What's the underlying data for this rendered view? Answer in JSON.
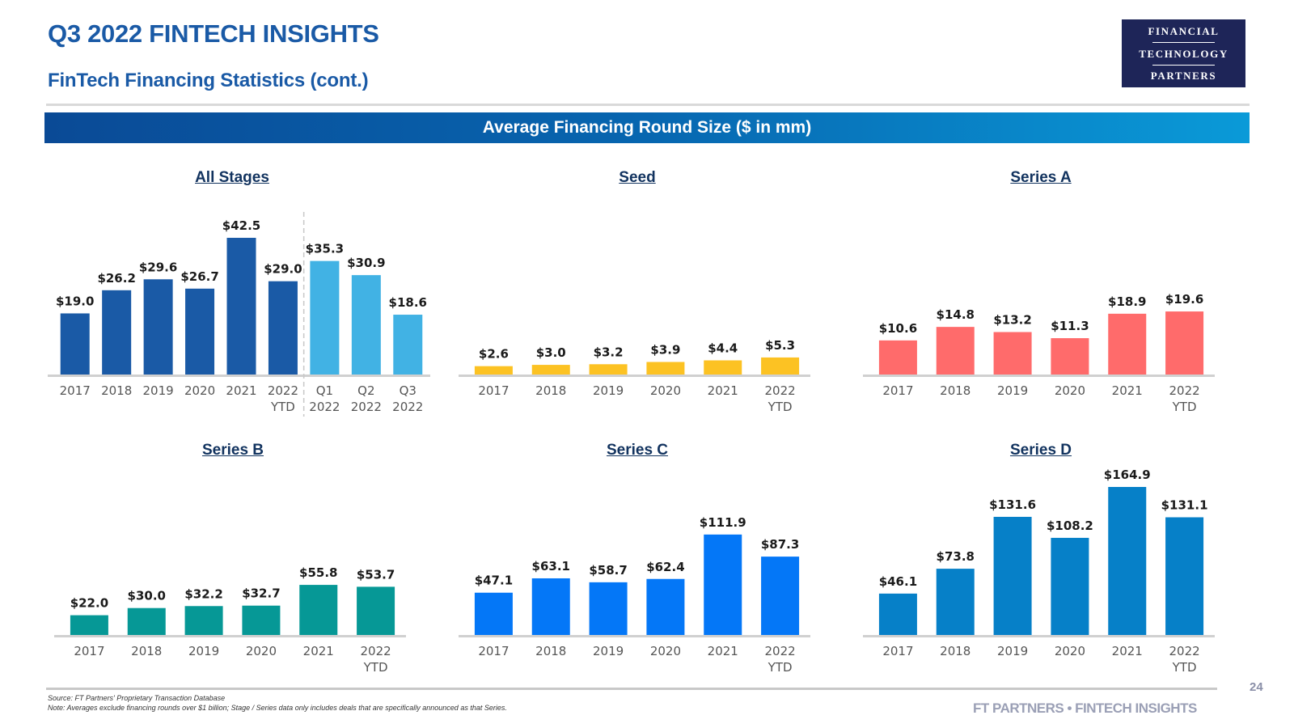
{
  "header": {
    "title": "Q3 2022 FINTECH INSIGHTS",
    "subtitle": "FinTech Financing Statistics (cont.)",
    "logo": {
      "line1": "FINANCIAL",
      "line2": "TECHNOLOGY",
      "line3": "PARTNERS"
    }
  },
  "banner": {
    "text": "Average Financing Round Size ($ in mm)"
  },
  "chart_data": [
    {
      "id": "all-stages",
      "type": "bar",
      "title": "All Stages",
      "categories": [
        "2017",
        "2018",
        "2019",
        "2020",
        "2021",
        "2022\nYTD",
        "Q1\n2022",
        "Q2\n2022",
        "Q3\n2022"
      ],
      "values": [
        19.0,
        26.2,
        29.6,
        26.7,
        42.5,
        29.0,
        35.3,
        30.9,
        18.6
      ],
      "labels": [
        "$19.0",
        "$26.2",
        "$29.6",
        "$26.7",
        "$42.5",
        "$29.0",
        "$35.3",
        "$30.9",
        "$18.6"
      ],
      "colors": [
        "#1a5aa6",
        "#1a5aa6",
        "#1a5aa6",
        "#1a5aa6",
        "#1a5aa6",
        "#1a5aa6",
        "#41b2e4",
        "#41b2e4",
        "#41b2e4"
      ],
      "divider_after_index": 5,
      "xlabel": "",
      "ylabel": "",
      "ylim": [
        0,
        42.5
      ],
      "grid": false
    },
    {
      "id": "seed",
      "type": "bar",
      "title": "Seed",
      "categories": [
        "2017",
        "2018",
        "2019",
        "2020",
        "2021",
        "2022\nYTD"
      ],
      "values": [
        2.6,
        3.0,
        3.2,
        3.9,
        4.4,
        5.3
      ],
      "labels": [
        "$2.6",
        "$3.0",
        "$3.2",
        "$3.9",
        "$4.4",
        "$5.3"
      ],
      "color": "#fcc223",
      "xlabel": "",
      "ylabel": "",
      "ylim": [
        0,
        42.5
      ],
      "grid": false
    },
    {
      "id": "series-a",
      "type": "bar",
      "title": "Series A",
      "categories": [
        "2017",
        "2018",
        "2019",
        "2020",
        "2021",
        "2022\nYTD"
      ],
      "values": [
        10.6,
        14.8,
        13.2,
        11.3,
        18.9,
        19.6
      ],
      "labels": [
        "$10.6",
        "$14.8",
        "$13.2",
        "$11.3",
        "$18.9",
        "$19.6"
      ],
      "color": "#ff6b6b",
      "xlabel": "",
      "ylabel": "",
      "ylim": [
        0,
        42.5
      ],
      "grid": false
    },
    {
      "id": "series-b",
      "type": "bar",
      "title": "Series B",
      "categories": [
        "2017",
        "2018",
        "2019",
        "2020",
        "2021",
        "2022\nYTD"
      ],
      "values": [
        22.0,
        30.0,
        32.2,
        32.7,
        55.8,
        53.7
      ],
      "labels": [
        "$22.0",
        "$30.0",
        "$32.2",
        "$32.7",
        "$55.8",
        "$53.7"
      ],
      "color": "#069896",
      "xlabel": "",
      "ylabel": "",
      "ylim": [
        0,
        164.9
      ],
      "grid": false
    },
    {
      "id": "series-c",
      "type": "bar",
      "title": "Series C",
      "categories": [
        "2017",
        "2018",
        "2019",
        "2020",
        "2021",
        "2022\nYTD"
      ],
      "values": [
        47.1,
        63.1,
        58.7,
        62.4,
        111.9,
        87.3
      ],
      "labels": [
        "$47.1",
        "$63.1",
        "$58.7",
        "$62.4",
        "$111.9",
        "$87.3"
      ],
      "color": "#0477f7",
      "xlabel": "",
      "ylabel": "",
      "ylim": [
        0,
        164.9
      ],
      "grid": false
    },
    {
      "id": "series-d",
      "type": "bar",
      "title": "Series D",
      "categories": [
        "2017",
        "2018",
        "2019",
        "2020",
        "2021",
        "2022\nYTD"
      ],
      "values": [
        46.1,
        73.8,
        131.6,
        108.2,
        164.9,
        131.1
      ],
      "labels": [
        "$46.1",
        "$73.8",
        "$131.6",
        "$108.2",
        "$164.9",
        "$131.1"
      ],
      "color": "#0680c8",
      "xlabel": "",
      "ylabel": "",
      "ylim": [
        0,
        164.9
      ],
      "grid": false
    }
  ],
  "footer": {
    "source": "Source: FT Partners' Proprietary Transaction Database",
    "note": "Note: Averages exclude financing rounds over $1 billion; Stage / Series data only includes deals that are specifically announced as that Series.",
    "page_number": "24",
    "brand": "FT PARTNERS • FINTECH INSIGHTS"
  }
}
